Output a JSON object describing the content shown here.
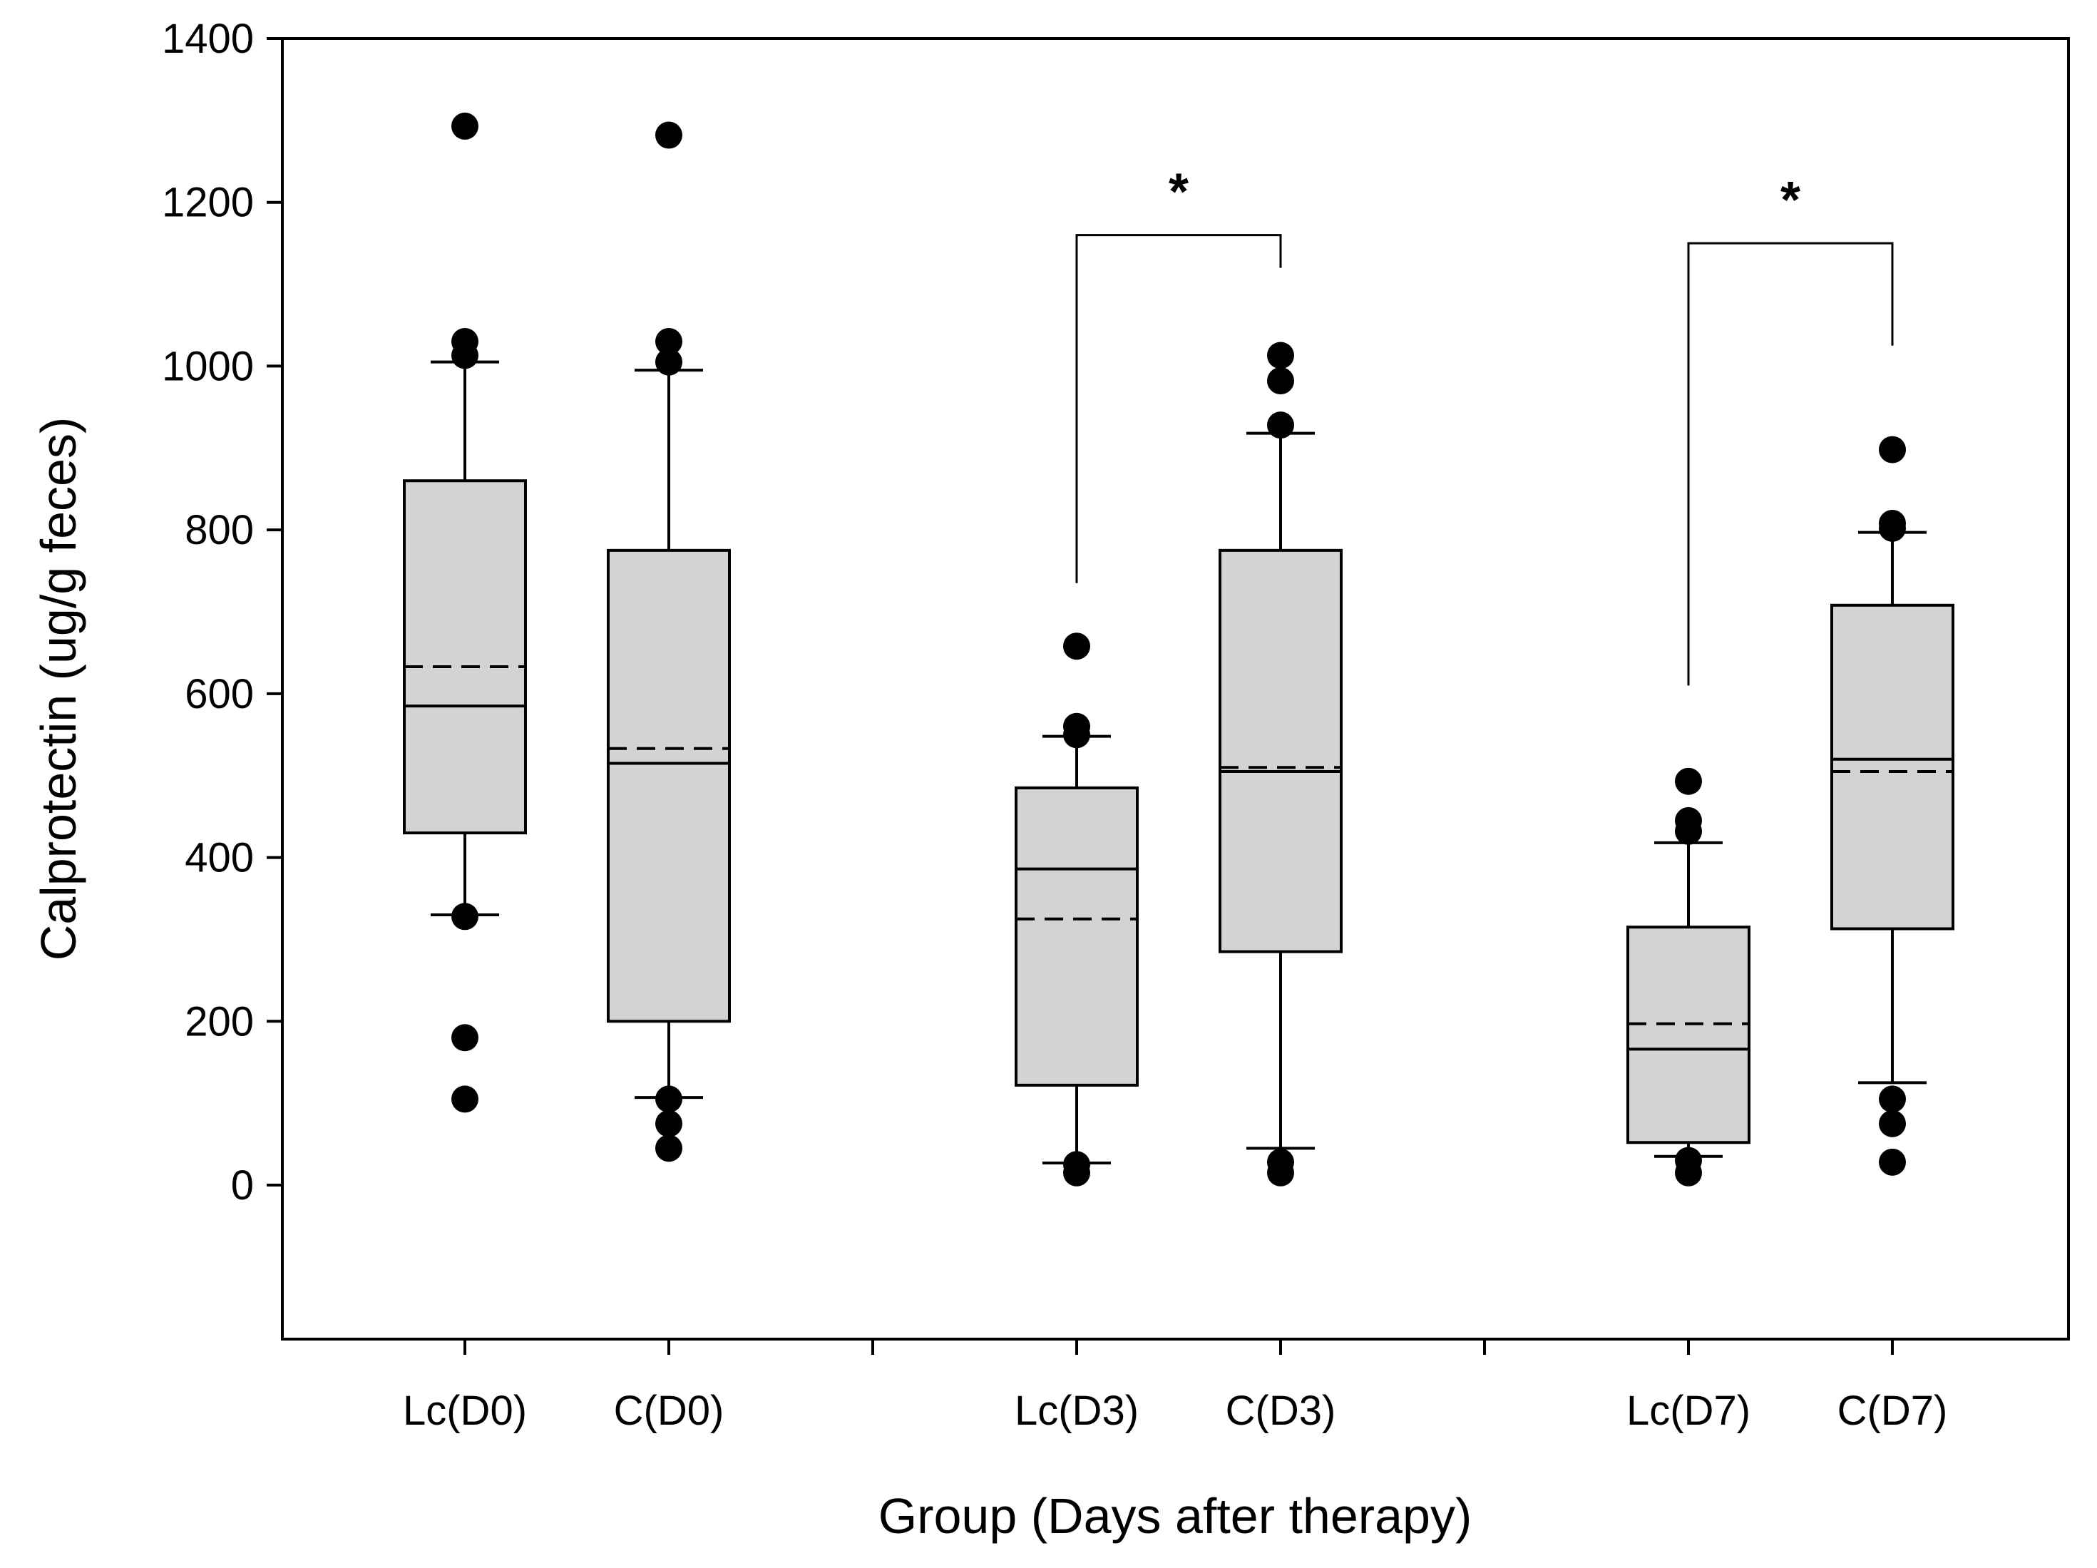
{
  "chart_data": {
    "type": "box",
    "title": "",
    "xlabel": "Group (Days after therapy)",
    "ylabel": "Calprotectin (ug/g feces)",
    "ylim": [
      -180,
      1400
    ],
    "yticks": [
      0,
      200,
      400,
      600,
      800,
      1000,
      1200,
      1400
    ],
    "grid": false,
    "legend": "none",
    "colors": {
      "box_fill": "#d3d3d3",
      "stroke": "#000000",
      "point": "#000000"
    },
    "categories": [
      "Lc(D0)",
      "C(D0)",
      "Lc(D3)",
      "C(D3)",
      "Lc(D7)",
      "C(D7)"
    ],
    "boxes": [
      {
        "label": "Lc(D0)",
        "slot": 1,
        "q1": 430,
        "median": 585,
        "mean": 633,
        "q3": 860,
        "whisker_low": 330,
        "whisker_high": 1005,
        "outliers": [
          1293,
          1030,
          1013,
          328,
          180,
          105
        ]
      },
      {
        "label": "C(D0)",
        "slot": 2,
        "q1": 200,
        "median": 515,
        "mean": 533,
        "q3": 775,
        "whisker_low": 107,
        "whisker_high": 995,
        "outliers": [
          1282,
          1030,
          1005,
          105,
          75,
          45
        ]
      },
      {
        "label": "Lc(D3)",
        "slot": 4,
        "q1": 122,
        "median": 386,
        "mean": 325,
        "q3": 485,
        "whisker_low": 27,
        "whisker_high": 548,
        "outliers": [
          658,
          560,
          550,
          25,
          15
        ]
      },
      {
        "label": "C(D3)",
        "slot": 5,
        "q1": 285,
        "median": 505,
        "mean": 510,
        "q3": 775,
        "whisker_low": 45,
        "whisker_high": 918,
        "outliers": [
          1013,
          982,
          928,
          28,
          15
        ]
      },
      {
        "label": "Lc(D7)",
        "slot": 7,
        "q1": 52,
        "median": 166,
        "mean": 197,
        "q3": 315,
        "whisker_low": 35,
        "whisker_high": 418,
        "outliers": [
          493,
          445,
          432,
          30,
          15
        ]
      },
      {
        "label": "C(D7)",
        "slot": 8,
        "q1": 313,
        "median": 520,
        "mean": 505,
        "q3": 708,
        "whisker_low": 125,
        "whisker_high": 797,
        "outliers": [
          898,
          808,
          802,
          105,
          75,
          28
        ]
      }
    ],
    "significance": [
      {
        "from": "Lc(D3)",
        "to": "C(D3)",
        "label": "*",
        "bracket_y": 1160,
        "left_drop_to": 735,
        "right_drop_to": 1120
      },
      {
        "from": "Lc(D7)",
        "to": "C(D7)",
        "label": "*",
        "bracket_y": 1150,
        "left_drop_to": 610,
        "right_drop_to": 1025
      }
    ]
  }
}
